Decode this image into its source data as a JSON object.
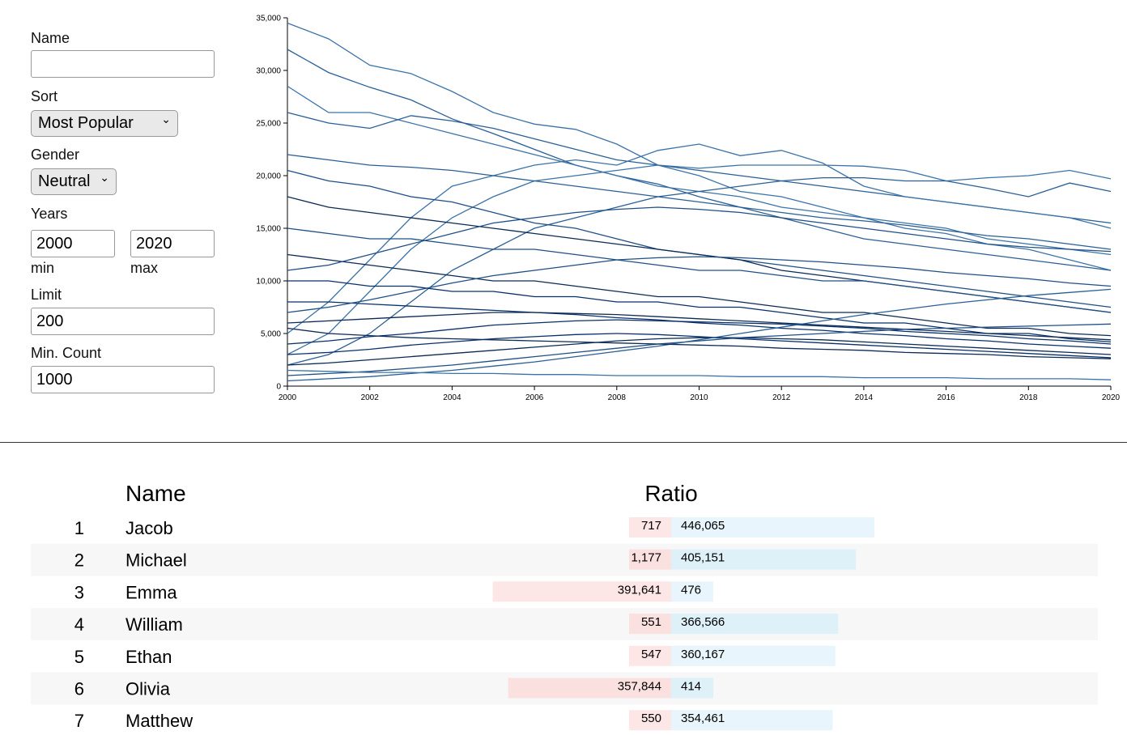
{
  "form": {
    "name_label": "Name",
    "sort_label": "Sort",
    "sort_value": "Most Popular",
    "gender_label": "Gender",
    "gender_value": "Neutral",
    "years_label": "Years",
    "year_min": "2000",
    "year_min_label": "min",
    "year_max": "2020",
    "year_max_label": "max",
    "limit_label": "Limit",
    "limit_value": "200",
    "min_count_label": "Min. Count",
    "min_count_value": "1000"
  },
  "chart_data": {
    "type": "line",
    "xlim": [
      2000,
      2020
    ],
    "xticks": [
      2000,
      2002,
      2004,
      2006,
      2008,
      2010,
      2012,
      2014,
      2016,
      2018,
      2020
    ],
    "ylim": [
      0,
      35000
    ],
    "yticks": [
      0,
      {
        "value": 5000,
        "label": "5,000"
      },
      {
        "value": 10000,
        "label": "10,000"
      },
      {
        "value": 15000,
        "label": "15,000"
      },
      {
        "value": 20000,
        "label": "20,000"
      },
      {
        "value": 25000,
        "label": "25,000"
      },
      {
        "value": 30000,
        "label": "30,000"
      },
      {
        "value": 35000,
        "label": "35,000"
      }
    ],
    "x": [
      2000,
      2001,
      2002,
      2003,
      2004,
      2005,
      2006,
      2007,
      2008,
      2009,
      2010,
      2011,
      2012,
      2013,
      2014,
      2015,
      2016,
      2017,
      2018,
      2019,
      2020
    ],
    "series": [
      {
        "color": "#3b73a8",
        "values": [
          34500,
          33000,
          30500,
          29700,
          28000,
          26000,
          24900,
          24400,
          23000,
          21000,
          20000,
          18500,
          18000,
          17000,
          16000,
          15000,
          14500,
          13500,
          13000,
          12000,
          11000
        ]
      },
      {
        "color": "#2a5f96",
        "values": [
          32000,
          29800,
          28400,
          27200,
          25400,
          24000,
          22500,
          21000,
          20000,
          19200,
          18000,
          17000,
          16000,
          15000,
          14000,
          13500,
          13000,
          12500,
          12000,
          11500,
          11000
        ]
      },
      {
        "color": "#3b73a8",
        "values": [
          28500,
          26000,
          26000,
          25000,
          24000,
          23000,
          22000,
          21000,
          20000,
          19000,
          18500,
          18000,
          17000,
          16500,
          16000,
          15500,
          15000,
          14000,
          13500,
          13000,
          12500
        ]
      },
      {
        "color": "#2a5f96",
        "values": [
          26000,
          25000,
          24500,
          25700,
          25200,
          24500,
          23500,
          22500,
          21500,
          21000,
          20500,
          20000,
          19500,
          19000,
          18500,
          18000,
          17500,
          17000,
          16500,
          16000,
          15500
        ]
      },
      {
        "color": "#3b73a8",
        "values": [
          5000,
          8000,
          12000,
          16000,
          19000,
          20000,
          21000,
          21500,
          21000,
          22400,
          23000,
          21900,
          22400,
          21200,
          19000,
          18000,
          17500,
          17000,
          16500,
          16000,
          15000
        ]
      },
      {
        "color": "#3b73a8",
        "values": [
          3000,
          5000,
          9000,
          13000,
          16000,
          18000,
          19500,
          20000,
          20500,
          21000,
          20700,
          21000,
          21000,
          21000,
          20900,
          20500,
          19500,
          19800,
          20000,
          20500,
          19700
        ]
      },
      {
        "color": "#2a5f96",
        "values": [
          2000,
          3000,
          5000,
          8000,
          11000,
          13000,
          15000,
          16000,
          17000,
          18000,
          18500,
          19000,
          19500,
          19800,
          19800,
          19500,
          19500,
          18800,
          18000,
          19300,
          18500
        ]
      },
      {
        "color": "#1f4f86",
        "values": [
          20500,
          19500,
          19000,
          18000,
          17500,
          16500,
          15500,
          15000,
          14000,
          13000,
          12500,
          12000,
          11500,
          11000,
          10500,
          10000,
          9500,
          9000,
          8500,
          8000,
          7500
        ]
      },
      {
        "color": "#0c2a55",
        "values": [
          18000,
          17000,
          16500,
          16000,
          15500,
          15000,
          14500,
          14000,
          13500,
          13000,
          12500,
          12000,
          11000,
          10500,
          10000,
          9500,
          9000,
          8500,
          8000,
          7500,
          7000
        ]
      },
      {
        "color": "#1f4f86",
        "values": [
          15000,
          14500,
          14000,
          14000,
          13500,
          13000,
          13000,
          12500,
          12000,
          11500,
          11000,
          11000,
          10500,
          10000,
          10000,
          9500,
          9000,
          8500,
          8000,
          7500,
          7000
        ]
      },
      {
        "color": "#0c2a55",
        "values": [
          12500,
          12000,
          11500,
          11000,
          10500,
          10000,
          10000,
          9500,
          9000,
          8500,
          8500,
          8000,
          7500,
          7000,
          7000,
          6500,
          6000,
          5500,
          5500,
          5000,
          4800
        ]
      },
      {
        "color": "#08306b",
        "values": [
          10000,
          10000,
          9500,
          9500,
          9000,
          9000,
          8500,
          8500,
          8000,
          8000,
          7500,
          7500,
          7000,
          6500,
          6000,
          6000,
          5500,
          5000,
          5000,
          4500,
          4200
        ]
      },
      {
        "color": "#08306b",
        "values": [
          8000,
          8000,
          7800,
          7600,
          7400,
          7200,
          7000,
          6800,
          6500,
          6300,
          6000,
          5800,
          5500,
          5300,
          5000,
          4800,
          4500,
          4300,
          4000,
          3800,
          3600
        ]
      },
      {
        "color": "#0c2a55",
        "values": [
          6000,
          6200,
          6400,
          6600,
          6800,
          7000,
          7000,
          6900,
          6800,
          6600,
          6400,
          6200,
          6000,
          5800,
          5600,
          5400,
          5200,
          5000,
          4800,
          4600,
          4400
        ]
      },
      {
        "color": "#08306b",
        "values": [
          4000,
          4300,
          4700,
          5000,
          5400,
          5800,
          6000,
          6200,
          6300,
          6200,
          6100,
          6000,
          5900,
          5700,
          5500,
          5200,
          5000,
          4800,
          4500,
          4300,
          4000
        ]
      },
      {
        "color": "#08306b",
        "values": [
          3000,
          3200,
          3500,
          3900,
          4200,
          4500,
          4700,
          4900,
          5000,
          4900,
          4700,
          4500,
          4300,
          4100,
          3900,
          3700,
          3500,
          3300,
          3100,
          2900,
          2700
        ]
      },
      {
        "color": "#0c2a55",
        "values": [
          2000,
          2200,
          2500,
          2800,
          3100,
          3400,
          3700,
          4000,
          4300,
          4500,
          4600,
          4600,
          4500,
          4400,
          4200,
          4000,
          3800,
          3600,
          3400,
          3200,
          3000
        ]
      },
      {
        "color": "#1f4f86",
        "values": [
          1000,
          1200,
          1400,
          1700,
          2000,
          2400,
          2800,
          3200,
          3600,
          4000,
          4300,
          4600,
          4800,
          5000,
          5200,
          5400,
          5500,
          5600,
          5700,
          5800,
          5900
        ]
      },
      {
        "color": "#2a5f96",
        "values": [
          500,
          700,
          900,
          1200,
          1500,
          1900,
          2300,
          2800,
          3300,
          3800,
          4400,
          5000,
          5600,
          6200,
          6800,
          7300,
          7800,
          8200,
          8600,
          8900,
          9200
        ]
      },
      {
        "color": "#3b73a8",
        "values": [
          1500,
          1400,
          1300,
          1300,
          1200,
          1200,
          1100,
          1100,
          1000,
          1000,
          1000,
          900,
          900,
          900,
          800,
          800,
          800,
          700,
          700,
          700,
          600
        ]
      },
      {
        "color": "#1f4f86",
        "values": [
          7000,
          7500,
          8200,
          9000,
          9800,
          10500,
          11000,
          11500,
          12000,
          12200,
          12300,
          12200,
          12000,
          11800,
          11500,
          11200,
          10800,
          10500,
          10200,
          9800,
          9500
        ]
      },
      {
        "color": "#2a5f96",
        "values": [
          22000,
          21500,
          21000,
          20800,
          20500,
          20000,
          19500,
          19000,
          18500,
          18000,
          17500,
          17000,
          16500,
          16000,
          15700,
          15300,
          14800,
          14300,
          14000,
          13500,
          13000
        ]
      },
      {
        "color": "#0c2a55",
        "values": [
          5500,
          5000,
          4800,
          4600,
          4500,
          4400,
          4300,
          4200,
          4100,
          4000,
          3900,
          3800,
          3600,
          3500,
          3400,
          3200,
          3100,
          3000,
          2800,
          2700,
          2600
        ]
      },
      {
        "color": "#1f4f86",
        "values": [
          11000,
          11500,
          12500,
          13500,
          14500,
          15500,
          16000,
          16500,
          16800,
          17000,
          16800,
          16500,
          16000,
          15500,
          15000,
          14500,
          14000,
          13500,
          13200,
          13000,
          12800
        ]
      }
    ]
  },
  "table": {
    "headers": {
      "name": "Name",
      "ratio": "Ratio"
    },
    "rows": [
      {
        "rank": 1,
        "name": "Jacob",
        "female": {
          "value": 717,
          "label": "717"
        },
        "male": {
          "value": 446065,
          "label": "446,065"
        }
      },
      {
        "rank": 2,
        "name": "Michael",
        "female": {
          "value": 1177,
          "label": "1,177"
        },
        "male": {
          "value": 405151,
          "label": "405,151"
        }
      },
      {
        "rank": 3,
        "name": "Emma",
        "female": {
          "value": 391641,
          "label": "391,641"
        },
        "male": {
          "value": 476,
          "label": "476"
        }
      },
      {
        "rank": 4,
        "name": "William",
        "female": {
          "value": 551,
          "label": "551"
        },
        "male": {
          "value": 366566,
          "label": "366,566"
        }
      },
      {
        "rank": 5,
        "name": "Ethan",
        "female": {
          "value": 547,
          "label": "547"
        },
        "male": {
          "value": 360167,
          "label": "360,167"
        }
      },
      {
        "rank": 6,
        "name": "Olivia",
        "female": {
          "value": 357844,
          "label": "357,844"
        },
        "male": {
          "value": 414,
          "label": "414"
        }
      },
      {
        "rank": 7,
        "name": "Matthew",
        "female": {
          "value": 550,
          "label": "550"
        },
        "male": {
          "value": 354461,
          "label": "354,461"
        }
      }
    ]
  }
}
